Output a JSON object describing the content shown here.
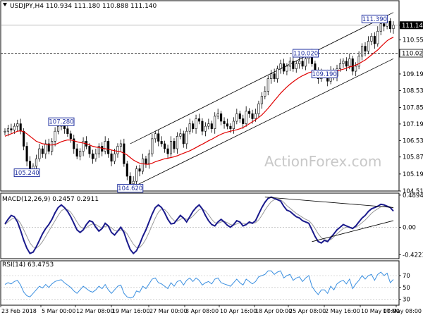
{
  "colors": {
    "background": "#ffffff",
    "frame": "#000000",
    "candle": "#000000",
    "ma": "#e00000",
    "channel": "#000000",
    "macd": "#1a1a8c",
    "macd_signal": "#9a9a9a",
    "rsi": "#3a8fe0",
    "label_box": "#2030a0",
    "watermark": "#c8c8c8"
  },
  "chart_data": [
    {
      "type": "candlestick",
      "title": "USDJPY,H4  110.934 111.180 110.888 111.140",
      "watermark": "ActionForex.com",
      "ylim": [
        104.51,
        112.12
      ],
      "yticks": [
        111.14,
        110.55,
        109.19,
        108.53,
        107.85,
        107.19,
        106.53,
        105.87,
        105.19,
        104.51
      ],
      "ytick_labels": [
        "111.140",
        "110.550",
        "109.190",
        "108.530",
        "107.850",
        "107.190",
        "106.530",
        "105.870",
        "105.190",
        "104.510"
      ],
      "reference_line": {
        "value": 110.02,
        "label": "110.020"
      },
      "last_price": {
        "value": 111.14,
        "label": "111.140"
      },
      "annotations": [
        {
          "label": "107.280",
          "value": 107.28,
          "index": 18
        },
        {
          "label": "105.240",
          "value": 105.24,
          "index": 7
        },
        {
          "label": "104.620",
          "value": 104.62,
          "index": 40
        },
        {
          "label": "110.020",
          "value": 110.02,
          "index": 96
        },
        {
          "label": "109.190",
          "value": 109.19,
          "index": 102
        },
        {
          "label": "111.390",
          "value": 111.39,
          "index": 118
        }
      ],
      "channel_upper": [
        [
          40,
          106.4
        ],
        [
          124,
          111.65
        ]
      ],
      "channel_lower": [
        [
          40,
          104.62
        ],
        [
          124,
          109.8
        ]
      ],
      "close": [
        106.9,
        107.0,
        106.95,
        107.1,
        107.2,
        106.9,
        106.3,
        105.7,
        105.3,
        105.5,
        105.8,
        106.2,
        106.0,
        106.4,
        106.1,
        106.5,
        106.9,
        107.1,
        107.2,
        107.0,
        106.8,
        106.6,
        106.2,
        105.9,
        106.1,
        106.5,
        106.3,
        106.0,
        105.8,
        106.0,
        106.3,
        106.1,
        106.5,
        106.0,
        105.7,
        106.0,
        106.3,
        106.4,
        105.6,
        105.1,
        104.8,
        104.9,
        105.4,
        105.3,
        105.8,
        105.6,
        106.0,
        106.6,
        106.8,
        106.5,
        106.4,
        106.2,
        106.0,
        106.5,
        106.2,
        106.7,
        106.8,
        106.4,
        106.9,
        107.2,
        107.0,
        107.4,
        107.3,
        106.9,
        107.1,
        107.2,
        107.0,
        107.5,
        107.6,
        107.3,
        107.2,
        107.1,
        107.0,
        107.3,
        107.6,
        107.4,
        107.2,
        107.7,
        107.6,
        107.4,
        107.6,
        108.0,
        108.3,
        108.5,
        109.0,
        109.2,
        109.0,
        109.4,
        109.6,
        109.3,
        109.5,
        109.7,
        109.4,
        109.6,
        109.7,
        109.5,
        109.8,
        110.0,
        109.6,
        109.3,
        109.0,
        109.2,
        109.2,
        108.9,
        109.3,
        109.1,
        109.4,
        109.6,
        109.7,
        109.5,
        109.8,
        109.3,
        109.5,
        109.9,
        110.3,
        110.1,
        110.5,
        110.7,
        110.4,
        110.9,
        111.2,
        111.1,
        111.3,
        111.0,
        111.14
      ],
      "ma": [
        106.7,
        106.75,
        106.8,
        106.85,
        106.9,
        106.92,
        106.88,
        106.8,
        106.7,
        106.6,
        106.5,
        106.45,
        106.4,
        106.38,
        106.35,
        106.35,
        106.37,
        106.42,
        106.48,
        106.52,
        106.55,
        106.55,
        106.52,
        106.48,
        106.45,
        106.43,
        106.4,
        106.35,
        106.3,
        106.27,
        106.25,
        106.22,
        106.2,
        106.18,
        106.15,
        106.12,
        106.1,
        106.08,
        106.02,
        105.95,
        105.85,
        105.75,
        105.68,
        105.62,
        105.6,
        105.58,
        105.58,
        105.62,
        105.68,
        105.72,
        105.76,
        105.8,
        105.82,
        105.85,
        105.88,
        105.92,
        105.97,
        106.02,
        106.07,
        106.12,
        106.18,
        106.25,
        106.32,
        106.38,
        106.45,
        106.52,
        106.58,
        106.65,
        106.72,
        106.78,
        106.83,
        106.87,
        106.9,
        106.93,
        106.96,
        107.0,
        107.05,
        107.12,
        107.2,
        107.28,
        107.36,
        107.45,
        107.55,
        107.68,
        107.82,
        107.97,
        108.12,
        108.27,
        108.42,
        108.55,
        108.67,
        108.78,
        108.88,
        108.97,
        109.05,
        109.12,
        109.18,
        109.24,
        109.28,
        109.3,
        109.3,
        109.3,
        109.3,
        109.29,
        109.29,
        109.3,
        109.32,
        109.35,
        109.38,
        109.42,
        109.47,
        109.5,
        109.55,
        109.6,
        109.68,
        109.75,
        109.85,
        109.95,
        110.05,
        110.15,
        110.28,
        110.4,
        110.52,
        110.6,
        110.66
      ]
    },
    {
      "type": "line",
      "title": "MACD(12,26,9) 0.2457 0.2911",
      "ylim": [
        -0.48,
        0.52
      ],
      "yticks": [
        0.4894,
        0.0,
        -0.4221
      ],
      "ytick_labels": [
        "0.4894",
        "0.00",
        "-0.4221"
      ],
      "series": [
        {
          "values": [
            0.05,
            0.12,
            0.18,
            0.16,
            0.08,
            -0.05,
            -0.2,
            -0.32,
            -0.4,
            -0.38,
            -0.3,
            -0.2,
            -0.1,
            -0.02,
            0.04,
            0.12,
            0.22,
            0.3,
            0.34,
            0.3,
            0.24,
            0.16,
            0.06,
            -0.04,
            -0.08,
            -0.04,
            0.04,
            0.1,
            0.08,
            0.0,
            -0.06,
            -0.02,
            0.06,
            0.02,
            -0.08,
            -0.12,
            -0.06,
            0.0,
            -0.08,
            -0.22,
            -0.34,
            -0.4,
            -0.36,
            -0.26,
            -0.14,
            -0.04,
            0.08,
            0.2,
            0.3,
            0.34,
            0.3,
            0.22,
            0.12,
            0.05,
            0.06,
            0.12,
            0.18,
            0.14,
            0.08,
            0.16,
            0.24,
            0.3,
            0.34,
            0.28,
            0.18,
            0.1,
            0.04,
            0.02,
            0.08,
            0.12,
            0.08,
            0.03,
            0.0,
            0.04,
            0.1,
            0.08,
            0.02,
            0.04,
            0.08,
            0.06,
            0.1,
            0.2,
            0.3,
            0.38,
            0.44,
            0.46,
            0.44,
            0.42,
            0.4,
            0.32,
            0.26,
            0.24,
            0.2,
            0.16,
            0.14,
            0.1,
            0.08,
            0.06,
            -0.04,
            -0.14,
            -0.22,
            -0.24,
            -0.2,
            -0.22,
            -0.16,
            -0.1,
            -0.04,
            0.0,
            0.04,
            0.02,
            0.0,
            -0.02,
            0.02,
            0.08,
            0.14,
            0.18,
            0.24,
            0.28,
            0.3,
            0.32,
            0.35,
            0.34,
            0.32,
            0.3,
            0.2457
          ]
        },
        {
          "values": [
            0.04,
            0.08,
            0.12,
            0.14,
            0.12,
            0.06,
            -0.04,
            -0.14,
            -0.24,
            -0.3,
            -0.32,
            -0.28,
            -0.22,
            -0.14,
            -0.06,
            0.02,
            0.1,
            0.18,
            0.25,
            0.28,
            0.27,
            0.23,
            0.16,
            0.08,
            0.01,
            -0.02,
            -0.01,
            0.03,
            0.05,
            0.04,
            0.01,
            -0.01,
            0.01,
            0.02,
            -0.01,
            -0.05,
            -0.06,
            -0.04,
            -0.05,
            -0.1,
            -0.18,
            -0.26,
            -0.31,
            -0.31,
            -0.26,
            -0.18,
            -0.08,
            0.03,
            0.14,
            0.23,
            0.28,
            0.27,
            0.22,
            0.15,
            0.1,
            0.09,
            0.12,
            0.14,
            0.12,
            0.13,
            0.17,
            0.22,
            0.27,
            0.28,
            0.25,
            0.19,
            0.12,
            0.07,
            0.06,
            0.08,
            0.09,
            0.07,
            0.04,
            0.03,
            0.05,
            0.07,
            0.06,
            0.05,
            0.06,
            0.06,
            0.07,
            0.11,
            0.18,
            0.26,
            0.33,
            0.39,
            0.42,
            0.43,
            0.42,
            0.38,
            0.33,
            0.29,
            0.25,
            0.21,
            0.18,
            0.15,
            0.12,
            0.1,
            0.05,
            -0.02,
            -0.1,
            -0.16,
            -0.19,
            -0.2,
            -0.19,
            -0.15,
            -0.1,
            -0.06,
            -0.02,
            0.0,
            0.0,
            -0.01,
            0.0,
            0.03,
            0.07,
            0.11,
            0.16,
            0.21,
            0.25,
            0.28,
            0.31,
            0.32,
            0.32,
            0.31,
            0.2911
          ]
        }
      ],
      "trendlines": [
        [
          [
            83,
            0.46
          ],
          [
            124,
            0.3
          ]
        ],
        [
          [
            98,
            -0.22
          ],
          [
            124,
            0.1
          ]
        ]
      ]
    },
    {
      "type": "line",
      "title": "RSI(14) 63.4753",
      "ylim": [
        20,
        95
      ],
      "yticks": [
        70,
        50,
        30
      ],
      "ytick_labels": [
        "70",
        "50",
        "30"
      ],
      "x_labels": [
        "23 Feb 2018",
        "5 Mar 00:00",
        "12 Mar 08:00",
        "19 Mar 16:00",
        "27 Mar 00:00",
        "3 Apr 08:00",
        "10 Apr 16:00",
        "18 Apr 00:00",
        "25 Apr 08:00",
        "2 May 16:00",
        "10 May 00:00",
        "17 May 08:00"
      ],
      "series": [
        {
          "values": [
            55,
            58,
            56,
            60,
            62,
            54,
            42,
            36,
            34,
            40,
            46,
            52,
            49,
            55,
            50,
            56,
            60,
            62,
            63,
            58,
            54,
            50,
            44,
            40,
            46,
            52,
            48,
            44,
            42,
            46,
            52,
            48,
            55,
            46,
            40,
            46,
            52,
            54,
            40,
            34,
            32,
            34,
            44,
            42,
            52,
            48,
            56,
            64,
            66,
            58,
            56,
            52,
            48,
            58,
            52,
            60,
            62,
            54,
            62,
            66,
            60,
            66,
            62,
            54,
            58,
            60,
            56,
            64,
            66,
            58,
            56,
            54,
            52,
            58,
            64,
            58,
            54,
            64,
            60,
            56,
            60,
            68,
            70,
            72,
            78,
            78,
            72,
            76,
            78,
            66,
            70,
            72,
            62,
            66,
            68,
            60,
            66,
            70,
            52,
            44,
            38,
            46,
            46,
            40,
            52,
            46,
            56,
            60,
            62,
            56,
            64,
            48,
            56,
            62,
            70,
            64,
            70,
            72,
            62,
            72,
            76,
            70,
            74,
            58,
            63.4753
          ]
        }
      ]
    }
  ]
}
